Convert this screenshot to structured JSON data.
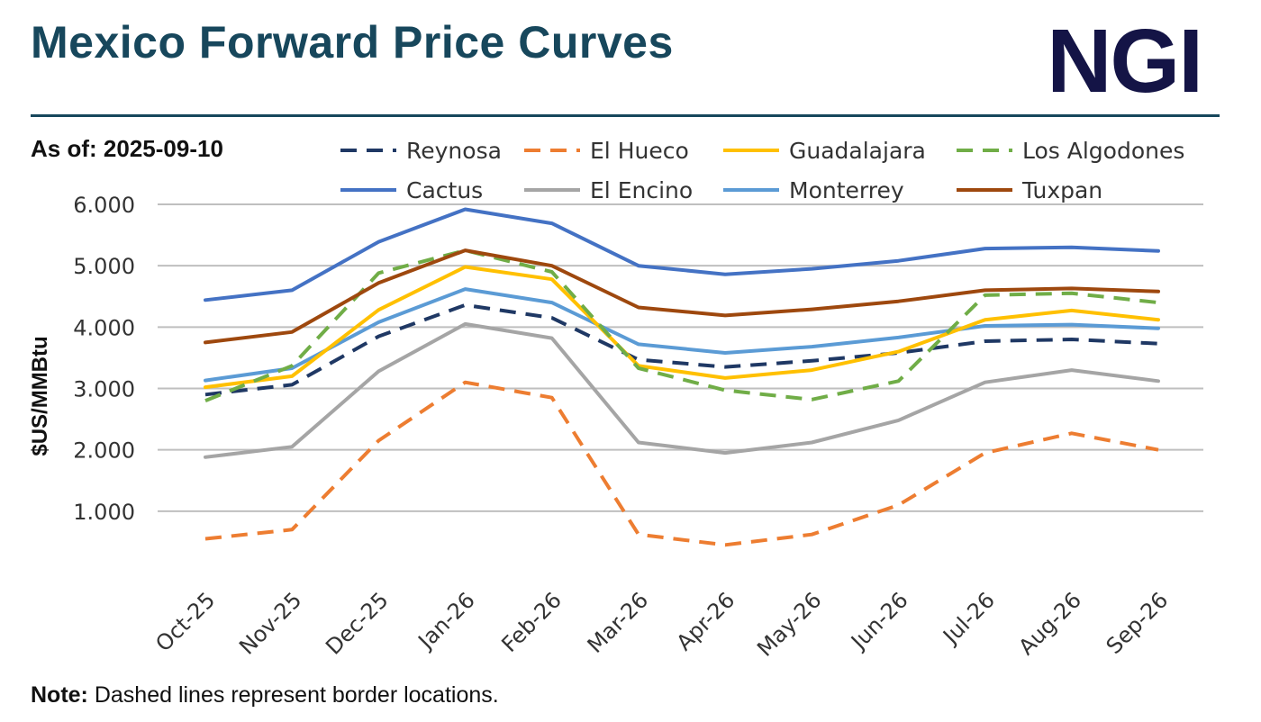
{
  "header": {
    "title": "Mexico Forward Price Curves",
    "logo": "NGI",
    "as_of_label": "As of:",
    "as_of_value": "2025-09-10"
  },
  "footer": {
    "note_label": "Note:",
    "note_text": " Dashed lines represent border locations."
  },
  "chart_data": {
    "type": "line",
    "title": "Mexico Forward Price Curves",
    "xlabel": "",
    "ylabel": "$US/MMBtu",
    "ylim": [
      0,
      6
    ],
    "yticks": [
      1,
      2,
      3,
      4,
      5,
      6
    ],
    "ytick_labels": [
      "1.000",
      "2.000",
      "3.000",
      "4.000",
      "5.000",
      "6.000"
    ],
    "grid": true,
    "legend_position": "top",
    "categories": [
      "Oct-25",
      "Nov-25",
      "Dec-25",
      "Jan-26",
      "Feb-26",
      "Mar-26",
      "Apr-26",
      "May-26",
      "Jun-26",
      "Jul-26",
      "Aug-26",
      "Sep-26"
    ],
    "series": [
      {
        "name": "Reynosa",
        "color": "#1f3864",
        "dashed": true,
        "values": [
          2.9,
          3.06,
          3.85,
          4.36,
          4.15,
          3.47,
          3.35,
          3.45,
          3.58,
          3.77,
          3.8,
          3.73
        ]
      },
      {
        "name": "El Hueco",
        "color": "#ed7d31",
        "dashed": true,
        "values": [
          0.55,
          0.7,
          2.15,
          3.1,
          2.85,
          0.62,
          0.45,
          0.62,
          1.1,
          1.95,
          2.27,
          2.0
        ]
      },
      {
        "name": "Guadalajara",
        "color": "#ffc000",
        "dashed": false,
        "values": [
          3.02,
          3.2,
          4.28,
          4.98,
          4.78,
          3.37,
          3.17,
          3.3,
          3.6,
          4.12,
          4.27,
          4.12
        ]
      },
      {
        "name": "Los Algodones",
        "color": "#70ad47",
        "dashed": true,
        "values": [
          2.8,
          3.37,
          4.88,
          5.25,
          4.9,
          3.33,
          2.97,
          2.82,
          3.12,
          4.52,
          4.55,
          4.4
        ]
      },
      {
        "name": "Cactus",
        "color": "#4472c4",
        "dashed": false,
        "values": [
          4.44,
          4.6,
          5.39,
          5.92,
          5.69,
          5.0,
          4.86,
          4.95,
          5.08,
          5.28,
          5.3,
          5.24
        ]
      },
      {
        "name": "El Encino",
        "color": "#a5a5a5",
        "dashed": false,
        "values": [
          1.88,
          2.05,
          3.28,
          4.05,
          3.82,
          2.12,
          1.95,
          2.12,
          2.48,
          3.1,
          3.3,
          3.12
        ]
      },
      {
        "name": "Monterrey",
        "color": "#5b9bd5",
        "dashed": false,
        "values": [
          3.13,
          3.33,
          4.08,
          4.62,
          4.4,
          3.72,
          3.58,
          3.68,
          3.83,
          4.02,
          4.04,
          3.98
        ]
      },
      {
        "name": "Tuxpan",
        "color": "#9e480e",
        "dashed": false,
        "values": [
          3.75,
          3.92,
          4.72,
          5.25,
          5.0,
          4.32,
          4.19,
          4.29,
          4.42,
          4.6,
          4.63,
          4.58
        ]
      }
    ]
  }
}
